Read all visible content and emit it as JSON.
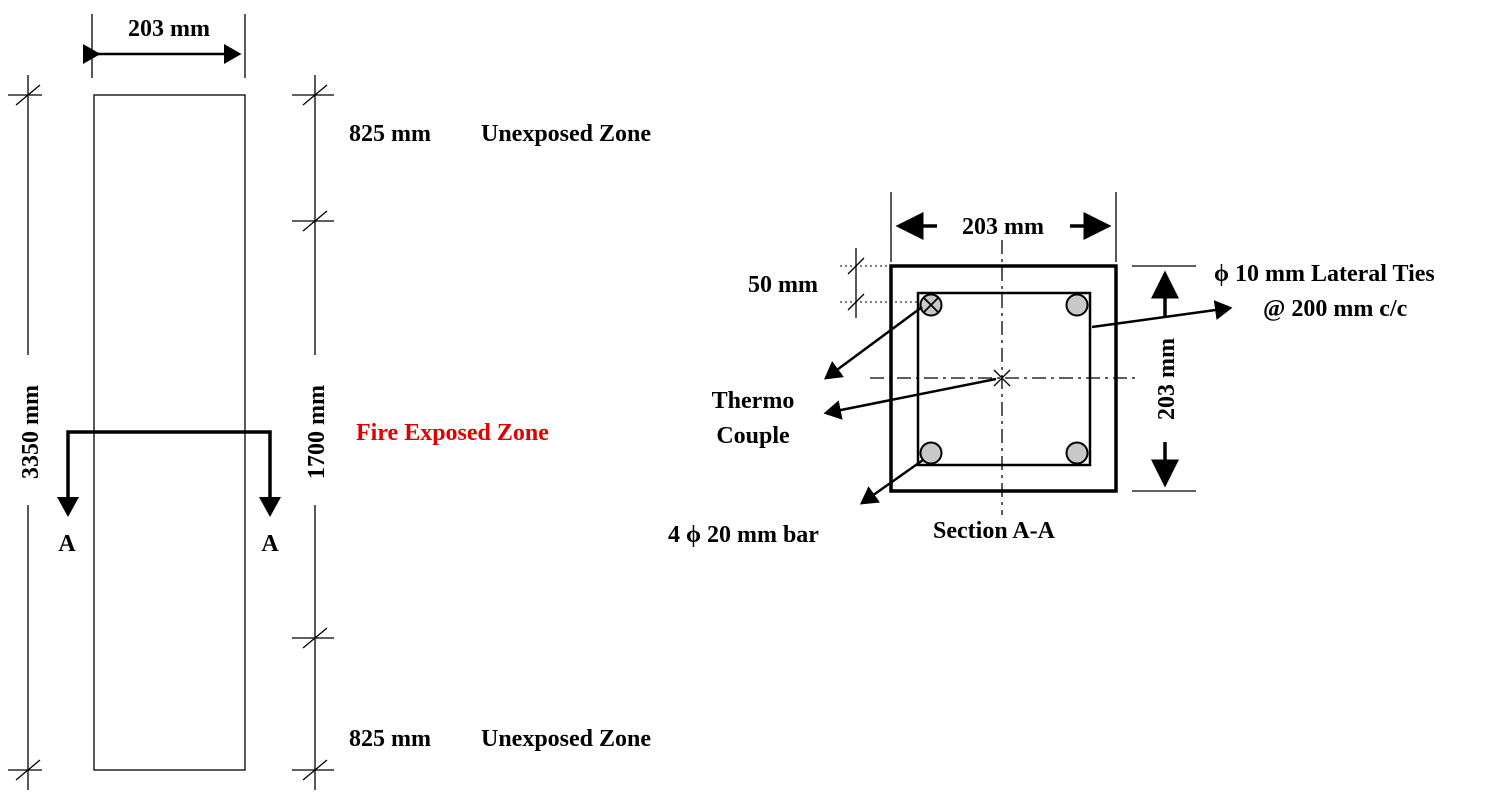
{
  "elevation": {
    "width_label": "203 mm",
    "total_height_label": "3350 mm",
    "exposed_height_label": "1700 mm",
    "top_zone_length": "825 mm",
    "top_zone_label": "Unexposed Zone",
    "fire_zone_label": "Fire Exposed Zone",
    "bottom_zone_length": "825 mm",
    "bottom_zone_label": "Unexposed Zone",
    "section_mark_left": "A",
    "section_mark_right": "A"
  },
  "section": {
    "width_label": "203 mm",
    "height_label": "203 mm",
    "cover_label": "50 mm",
    "ties_label_line1": "ϕ 10 mm Lateral Ties",
    "ties_label_line2": "@ 200 mm c/c",
    "thermocouple_line1": "Thermo",
    "thermocouple_line2": "Couple",
    "bars_label": "4 ϕ 20 mm bar",
    "title": "Section A-A"
  },
  "colors": {
    "fire_zone_text": "#e00000",
    "bar_fill": "#c8c8c8"
  }
}
